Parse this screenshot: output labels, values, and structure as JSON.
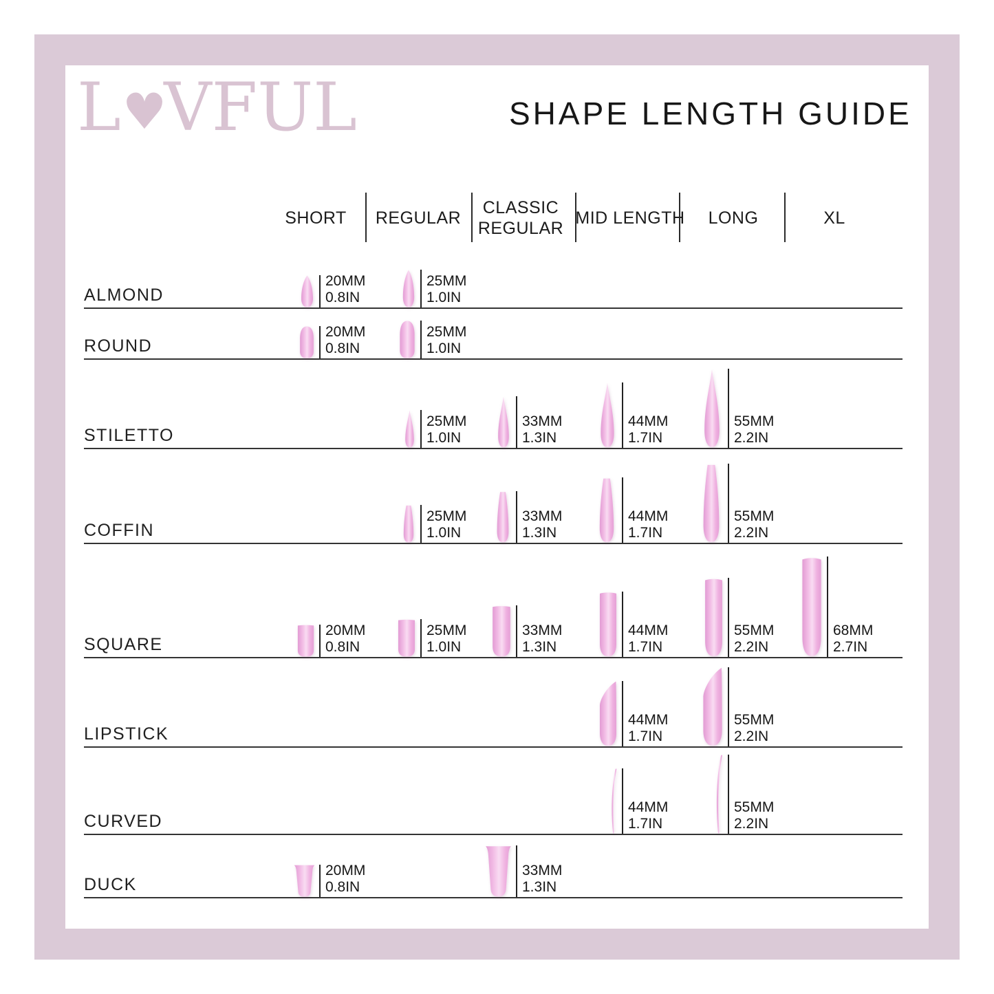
{
  "brand": {
    "name": "LOVFUL",
    "letters": [
      "L",
      "♥",
      "V",
      "F",
      "U",
      "L"
    ]
  },
  "title": "SHAPE LENGTH GUIDE",
  "columns": [
    {
      "id": "short",
      "label": "SHORT"
    },
    {
      "id": "regular",
      "label": "REGULAR"
    },
    {
      "id": "classic",
      "label": "CLASSIC REGULAR"
    },
    {
      "id": "mid",
      "label": "MID LENGTH"
    },
    {
      "id": "long",
      "label": "LONG"
    },
    {
      "id": "xl",
      "label": "XL"
    }
  ],
  "length_values": {
    "short": {
      "mm": "20MM",
      "in": "0.8IN"
    },
    "regular": {
      "mm": "25MM",
      "in": "1.0IN"
    },
    "classic": {
      "mm": "33MM",
      "in": "1.3IN"
    },
    "mid": {
      "mm": "44MM",
      "in": "1.7IN"
    },
    "long": {
      "mm": "55MM",
      "in": "2.2IN"
    },
    "xl": {
      "mm": "68MM",
      "in": "2.7IN"
    }
  },
  "rows": [
    {
      "id": "almond",
      "shape": "ALMOND",
      "cells": [
        {
          "col": "short",
          "mm": "20MM",
          "in": "0.8IN"
        },
        {
          "col": "regular",
          "mm": "25MM",
          "in": "1.0IN"
        }
      ]
    },
    {
      "id": "round",
      "shape": "ROUND",
      "cells": [
        {
          "col": "short",
          "mm": "20MM",
          "in": "0.8IN"
        },
        {
          "col": "regular",
          "mm": "25MM",
          "in": "1.0IN"
        }
      ]
    },
    {
      "id": "stiletto",
      "shape": "STILETTO",
      "cells": [
        {
          "col": "regular",
          "mm": "25MM",
          "in": "1.0IN"
        },
        {
          "col": "classic",
          "mm": "33MM",
          "in": "1.3IN"
        },
        {
          "col": "mid",
          "mm": "44MM",
          "in": "1.7IN"
        },
        {
          "col": "long",
          "mm": "55MM",
          "in": "2.2IN"
        }
      ]
    },
    {
      "id": "coffin",
      "shape": "COFFIN",
      "cells": [
        {
          "col": "regular",
          "mm": "25MM",
          "in": "1.0IN"
        },
        {
          "col": "classic",
          "mm": "33MM",
          "in": "1.3IN"
        },
        {
          "col": "mid",
          "mm": "44MM",
          "in": "1.7IN"
        },
        {
          "col": "long",
          "mm": "55MM",
          "in": "2.2IN"
        }
      ]
    },
    {
      "id": "square",
      "shape": "SQUARE",
      "cells": [
        {
          "col": "short",
          "mm": "20MM",
          "in": "0.8IN"
        },
        {
          "col": "regular",
          "mm": "25MM",
          "in": "1.0IN"
        },
        {
          "col": "classic",
          "mm": "33MM",
          "in": "1.3IN"
        },
        {
          "col": "mid",
          "mm": "44MM",
          "in": "1.7IN"
        },
        {
          "col": "long",
          "mm": "55MM",
          "in": "2.2IN"
        },
        {
          "col": "xl",
          "mm": "68MM",
          "in": "2.7IN"
        }
      ]
    },
    {
      "id": "lipstick",
      "shape": "LIPSTICK",
      "cells": [
        {
          "col": "mid",
          "mm": "44MM",
          "in": "1.7IN"
        },
        {
          "col": "long",
          "mm": "55MM",
          "in": "2.2IN"
        }
      ]
    },
    {
      "id": "curved",
      "shape": "CURVED",
      "cells": [
        {
          "col": "mid",
          "mm": "44MM",
          "in": "1.7IN"
        },
        {
          "col": "long",
          "mm": "55MM",
          "in": "2.2IN"
        }
      ]
    },
    {
      "id": "duck",
      "shape": "DUCK",
      "cells": [
        {
          "col": "short",
          "mm": "20MM",
          "in": "0.8IN"
        },
        {
          "col": "classic",
          "mm": "33MM",
          "in": "1.3IN"
        }
      ]
    }
  ],
  "colors": {
    "frame": "#dbcad7",
    "logo": "#d9c3d2",
    "text": "#1c1c1c",
    "nail_edge": "#e29bd4",
    "nail_main": "#f2bce5",
    "nail_highlight": "#f9dcf2"
  }
}
